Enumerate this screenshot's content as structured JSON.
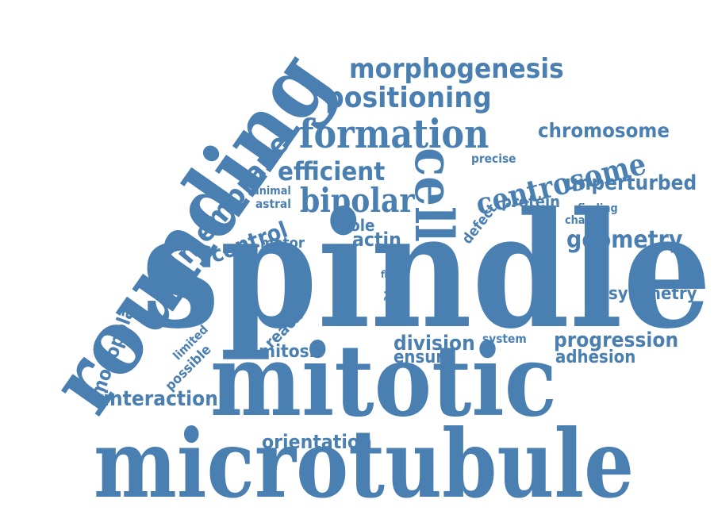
{
  "palette": {
    "word_color": "#4a7fb2",
    "background": "#ffffff"
  },
  "words": {
    "spindle": "spindle",
    "mitotic": "mitotic",
    "microtubule": "microtubule",
    "rounding": "rounding",
    "formation": "formation",
    "morphogenesis": "morphogenesis",
    "positioning": "positioning",
    "chromosome": "chromosome",
    "centrosome": "centrosome",
    "cell": "cell",
    "bipolar": "bipolar",
    "efficient": "efficient",
    "membrane": "membrane",
    "unperturbed": "unperturbed",
    "geometry": "geometry",
    "protein": "protein",
    "precise": "precise",
    "defect": "defect",
    "finding": "finding",
    "change": "change",
    "control": "control",
    "animal": "animal",
    "astral": "astral",
    "role": "role",
    "actin": "actin",
    "motor": "motor",
    "limit": "limit",
    "delay": "delay",
    "flat": "flat",
    "alter": "alter",
    "symmetry": "symmetry",
    "monopolar": "monopolar",
    "limited": "limited",
    "possible": "possible",
    "reach": "reach",
    "mitosis": "mitosis",
    "division": "division",
    "system": "system",
    "ensure": "ensure",
    "progression": "progression",
    "adhesion": "adhesion",
    "interaction": "interaction",
    "orientation": "orientation"
  }
}
